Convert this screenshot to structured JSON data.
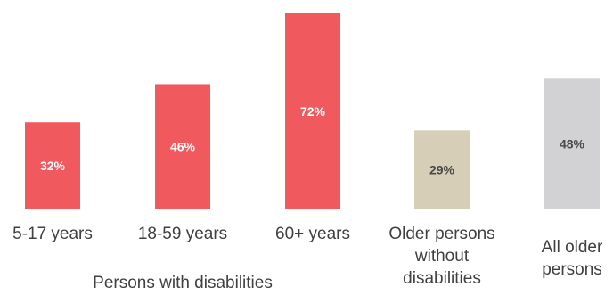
{
  "chart_data": {
    "type": "bar",
    "title": "",
    "xlabel": "",
    "ylabel": "",
    "ylim": [
      0,
      72
    ],
    "grid": false,
    "legend": "none",
    "categories": [
      [
        "5-17 years"
      ],
      [
        "18-59 years"
      ],
      [
        "60+ years"
      ],
      [
        "Older persons",
        "without",
        "disabilities"
      ],
      [
        "All older",
        "persons"
      ]
    ],
    "values": [
      32,
      46,
      72,
      29,
      48
    ],
    "data_labels": [
      "32%",
      "46%",
      "72%",
      "29%",
      "48%"
    ],
    "bar_colors": [
      "#f0595d",
      "#f0595d",
      "#f0595d",
      "#d6ceb6",
      "#d2d2d4"
    ],
    "label_colors": [
      "#ffffff",
      "#ffffff",
      "#ffffff",
      "#4a4a4a",
      "#4a4a4a"
    ],
    "group_label": "Persons with disabilities"
  }
}
